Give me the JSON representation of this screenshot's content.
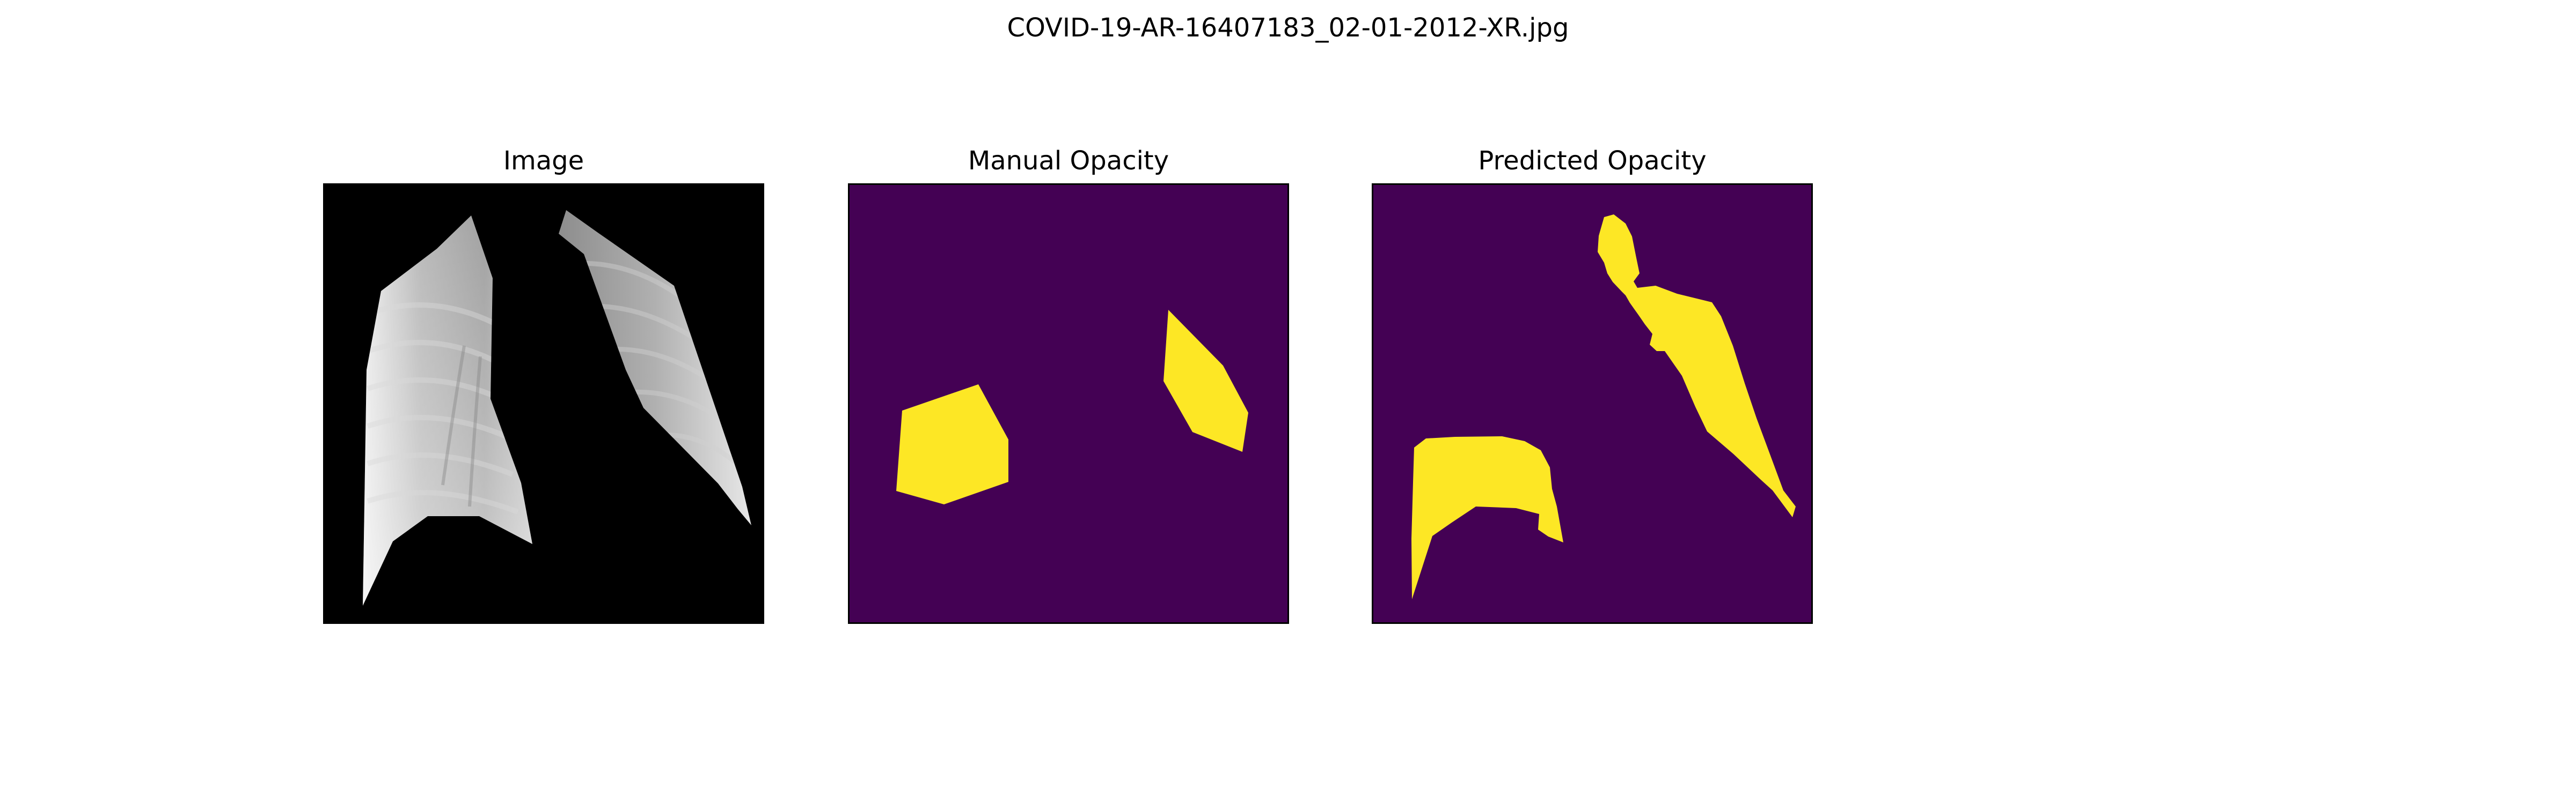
{
  "figure": {
    "title": "COVID-19-AR-16407183_02-01-2012-XR.jpg"
  },
  "panels": [
    {
      "title": "Image",
      "content": "lung-xray"
    },
    {
      "title": "Manual Opacity",
      "content": "opacity-mask"
    },
    {
      "title": "Predicted Opacity",
      "content": "opacity-mask"
    }
  ],
  "colors": {
    "xray_background": "#000000",
    "mask_background": "#440154",
    "mask_foreground": "#fde725"
  }
}
